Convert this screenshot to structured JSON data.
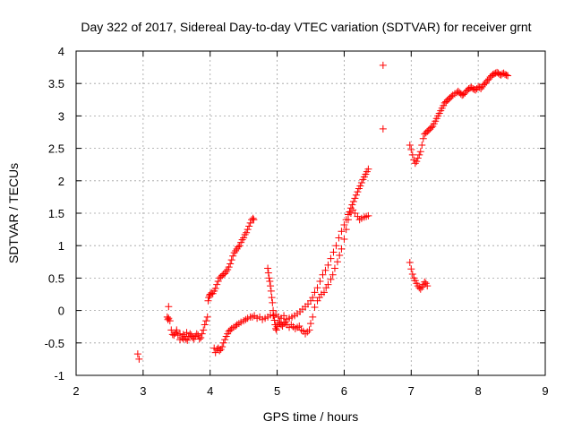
{
  "chart_data": {
    "type": "scatter",
    "title": "Day 322 of 2017, Sidereal Day-to-day VTEC variation (SDTVAR) for receiver grnt",
    "xlabel": "GPS time / hours",
    "ylabel": "SDTVAR / TECUs",
    "xlim": [
      2,
      9
    ],
    "ylim": [
      -1,
      4
    ],
    "xticks": [
      2,
      3,
      4,
      5,
      6,
      7,
      8,
      9
    ],
    "yticks": [
      -1,
      -0.5,
      0,
      0.5,
      1,
      1.5,
      2,
      2.5,
      3,
      3.5,
      4
    ],
    "grid": true,
    "marker": "+",
    "color": "#ff0000",
    "series": [
      {
        "name": "SDTVAR",
        "x": [
          2.92,
          2.94,
          3.36,
          3.37,
          3.38,
          3.4,
          3.42,
          3.44,
          3.46,
          3.48,
          3.5,
          3.52,
          3.55,
          3.58,
          3.6,
          3.62,
          3.64,
          3.66,
          3.68,
          3.7,
          3.72,
          3.74,
          3.76,
          3.78,
          3.8,
          3.82,
          3.84,
          3.86,
          3.88,
          3.9,
          3.92,
          3.94,
          3.96,
          3.38,
          3.5,
          3.55,
          3.6,
          3.65,
          3.97,
          3.98,
          3.99,
          4.0,
          4.02,
          4.04,
          4.06,
          4.08,
          4.1,
          4.12,
          4.14,
          4.16,
          4.18,
          4.2,
          4.22,
          4.24,
          4.26,
          4.28,
          4.3,
          4.32,
          4.34,
          4.36,
          4.38,
          4.4,
          4.42,
          4.44,
          4.46,
          4.48,
          4.5,
          4.52,
          4.54,
          4.56,
          4.58,
          4.6,
          4.62,
          4.64,
          4.65,
          4.06,
          4.08,
          4.1,
          4.12,
          4.14,
          4.16,
          4.18,
          4.2,
          4.22,
          4.24,
          4.26,
          4.28,
          4.3,
          4.32,
          4.35,
          4.38,
          4.4,
          4.43,
          4.46,
          4.5,
          4.53,
          4.56,
          4.6,
          4.63,
          4.66,
          4.7,
          4.74,
          4.78,
          4.82,
          4.86,
          4.9,
          4.94,
          4.98,
          5.02,
          5.06,
          5.1,
          5.14,
          5.18,
          5.22,
          5.26,
          5.3,
          5.34,
          5.38,
          5.42,
          5.46,
          5.5,
          5.53,
          5.56,
          5.6,
          5.64,
          5.68,
          5.72,
          5.76,
          5.8,
          5.84,
          5.88,
          5.92,
          5.96,
          6.0,
          6.03,
          6.06,
          6.08,
          6.1,
          6.12,
          6.14,
          6.16,
          6.18,
          6.2,
          6.22,
          6.24,
          6.26,
          6.28,
          6.3,
          6.32,
          6.34,
          6.36,
          4.86,
          4.87,
          4.88,
          4.89,
          4.9,
          4.91,
          4.92,
          4.93,
          4.94,
          4.95,
          4.96,
          4.97,
          4.98,
          4.99,
          5.0,
          5.02,
          5.04,
          5.06,
          5.08,
          5.1,
          5.12,
          5.15,
          5.18,
          5.21,
          5.24,
          5.27,
          5.3,
          5.33,
          5.36,
          5.39,
          5.42,
          5.45,
          5.48,
          5.5,
          5.53,
          5.56,
          5.6,
          5.63,
          5.66,
          5.7,
          5.73,
          5.76,
          5.8,
          5.83,
          5.86,
          5.9,
          5.93,
          5.96,
          6.0,
          6.03,
          6.06,
          6.1,
          6.13,
          6.16,
          6.2,
          6.23,
          6.26,
          6.3,
          6.33,
          6.36,
          6.58,
          6.58,
          6.98,
          7.0,
          7.02,
          7.04,
          7.06,
          7.08,
          7.1,
          7.12,
          7.14,
          7.16,
          7.18,
          7.2,
          7.22,
          7.24,
          7.26,
          7.28,
          7.3,
          7.32,
          7.34,
          7.36,
          7.38,
          7.4,
          7.42,
          7.44,
          7.46,
          7.48,
          7.5,
          7.52,
          7.54,
          7.56,
          7.58,
          7.6,
          7.62,
          7.65,
          7.68,
          7.7,
          7.72,
          7.74,
          7.76,
          7.78,
          7.8,
          7.82,
          7.84,
          7.86,
          7.88,
          7.9,
          7.92,
          7.94,
          7.96,
          7.98,
          8.0,
          8.02,
          8.04,
          8.06,
          8.08,
          8.1,
          8.12,
          8.14,
          8.16,
          8.18,
          8.2,
          8.22,
          8.24,
          8.26,
          8.28,
          8.3,
          8.32,
          8.34,
          8.36,
          8.38,
          8.4,
          8.42,
          8.44,
          6.98,
          7.0,
          7.02,
          7.04,
          7.06,
          7.08,
          7.1,
          7.12,
          7.14,
          7.16,
          7.18,
          7.2,
          7.22,
          7.24
        ],
        "y": [
          -0.67,
          -0.75,
          -0.1,
          -0.14,
          -0.12,
          -0.16,
          -0.3,
          -0.37,
          -0.38,
          -0.35,
          -0.33,
          -0.38,
          -0.45,
          -0.42,
          -0.37,
          -0.4,
          -0.44,
          -0.46,
          -0.4,
          -0.36,
          -0.38,
          -0.42,
          -0.44,
          -0.4,
          -0.36,
          -0.38,
          -0.44,
          -0.42,
          -0.36,
          -0.3,
          -0.22,
          -0.16,
          -0.1,
          0.06,
          -0.3,
          -0.36,
          -0.44,
          -0.34,
          0.15,
          0.2,
          0.23,
          0.25,
          0.27,
          0.26,
          0.3,
          0.34,
          0.4,
          0.45,
          0.5,
          0.52,
          0.54,
          0.56,
          0.57,
          0.6,
          0.63,
          0.67,
          0.72,
          0.78,
          0.84,
          0.89,
          0.92,
          0.95,
          0.98,
          1.0,
          1.05,
          1.09,
          1.12,
          1.17,
          1.2,
          1.25,
          1.3,
          1.35,
          1.4,
          1.42,
          1.4,
          -0.58,
          -0.65,
          -0.6,
          -0.58,
          -0.62,
          -0.6,
          -0.56,
          -0.5,
          -0.45,
          -0.4,
          -0.36,
          -0.32,
          -0.3,
          -0.28,
          -0.26,
          -0.24,
          -0.22,
          -0.2,
          -0.18,
          -0.16,
          -0.14,
          -0.12,
          -0.1,
          -0.1,
          -0.08,
          -0.12,
          -0.1,
          -0.14,
          -0.12,
          -0.1,
          -0.07,
          -0.08,
          -0.06,
          -0.1,
          -0.12,
          -0.08,
          -0.14,
          -0.12,
          -0.1,
          -0.08,
          -0.05,
          -0.02,
          0.02,
          0.06,
          0.1,
          0.15,
          0.2,
          0.28,
          0.35,
          0.45,
          0.55,
          0.62,
          0.7,
          0.8,
          0.9,
          1.0,
          1.12,
          1.22,
          1.32,
          1.4,
          1.48,
          1.52,
          1.58,
          1.63,
          1.68,
          1.73,
          1.78,
          1.83,
          1.88,
          1.92,
          1.97,
          2.02,
          2.06,
          2.1,
          2.14,
          2.18,
          0.65,
          0.58,
          0.5,
          0.45,
          0.38,
          0.3,
          0.2,
          0.12,
          0.0,
          -0.08,
          -0.15,
          -0.22,
          -0.28,
          -0.3,
          -0.25,
          -0.2,
          -0.18,
          -0.22,
          -0.24,
          -0.2,
          -0.18,
          -0.22,
          -0.26,
          -0.22,
          -0.25,
          -0.28,
          -0.26,
          -0.24,
          -0.3,
          -0.32,
          -0.36,
          -0.33,
          -0.3,
          -0.2,
          -0.1,
          0.05,
          0.15,
          0.2,
          0.25,
          0.28,
          0.35,
          0.4,
          0.48,
          0.55,
          0.65,
          0.75,
          0.85,
          0.95,
          1.1,
          1.25,
          1.4,
          1.5,
          1.55,
          1.5,
          1.45,
          1.4,
          1.42,
          1.44,
          1.45,
          1.46,
          3.78,
          2.8,
          2.55,
          2.48,
          2.4,
          2.32,
          2.27,
          2.3,
          2.35,
          2.4,
          2.45,
          2.55,
          2.65,
          2.72,
          2.74,
          2.76,
          2.78,
          2.8,
          2.82,
          2.84,
          2.88,
          2.92,
          2.96,
          3.0,
          3.04,
          3.08,
          3.12,
          3.16,
          3.2,
          3.22,
          3.24,
          3.26,
          3.28,
          3.3,
          3.32,
          3.34,
          3.36,
          3.38,
          3.36,
          3.34,
          3.32,
          3.33,
          3.35,
          3.38,
          3.4,
          3.42,
          3.43,
          3.44,
          3.42,
          3.41,
          3.4,
          3.42,
          3.45,
          3.44,
          3.42,
          3.45,
          3.48,
          3.5,
          3.52,
          3.55,
          3.57,
          3.6,
          3.62,
          3.64,
          3.65,
          3.66,
          3.67,
          3.66,
          3.64,
          3.63,
          3.65,
          3.66,
          3.64,
          3.63,
          3.62,
          0.74,
          0.64,
          0.56,
          0.5,
          0.46,
          0.42,
          0.38,
          0.35,
          0.33,
          0.36,
          0.4,
          0.44,
          0.42,
          0.38
        ]
      }
    ]
  }
}
